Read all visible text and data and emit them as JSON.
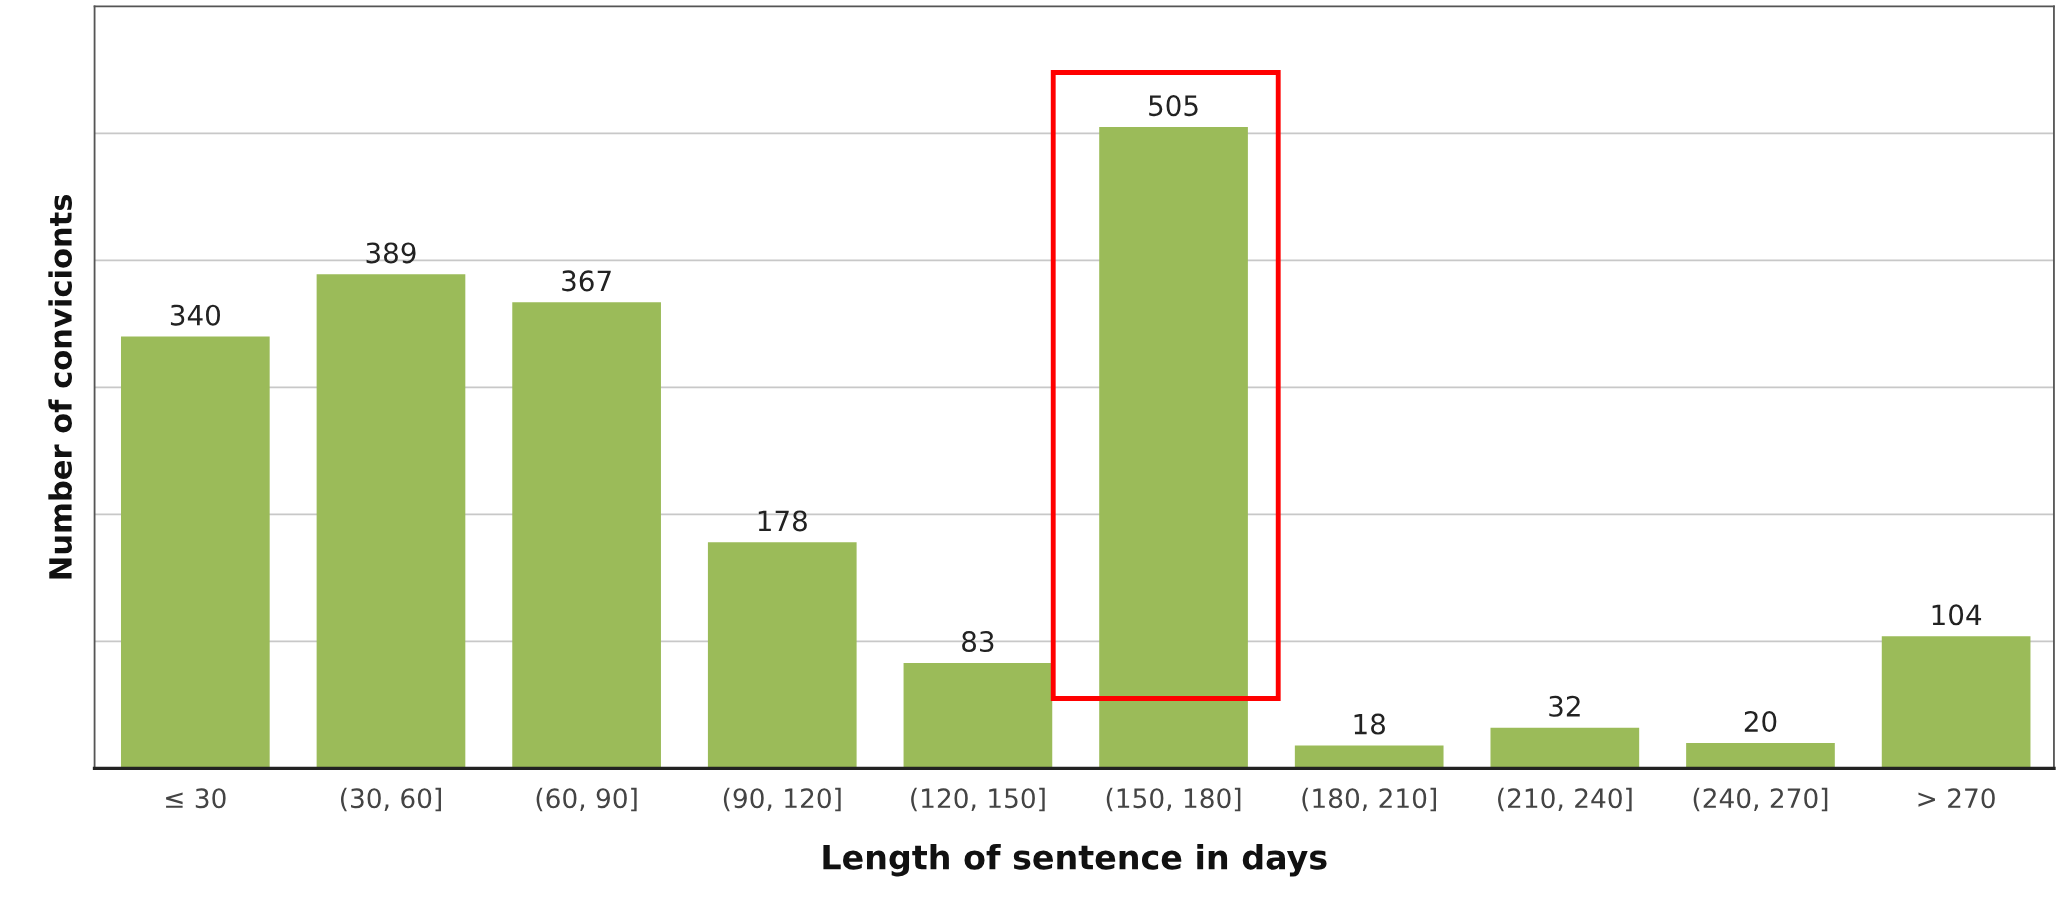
{
  "chart_data": {
    "type": "bar",
    "xlabel": "Length of sentence in days",
    "ylabel": "Number of convicionts",
    "categories": [
      "≤ 30",
      "(30, 60]",
      "(60, 90]",
      "(90, 120]",
      "(120, 150]",
      "(150, 180]",
      "(180, 210]",
      "(210, 240]",
      "(240, 270]",
      "> 270"
    ],
    "values": [
      340,
      389,
      367,
      178,
      83,
      505,
      18,
      32,
      20,
      104
    ],
    "color": "#9bbb59",
    "ylim": [
      0,
      600
    ],
    "yticks": [
      {
        "value": 100,
        "label": null
      },
      {
        "value": 200,
        "label": null
      },
      {
        "value": 300,
        "label": null
      },
      {
        "value": 400,
        "label": null
      },
      {
        "value": 500,
        "label": null
      }
    ],
    "grid": "y",
    "tick_labels": "x",
    "data_labels": true
  }
}
